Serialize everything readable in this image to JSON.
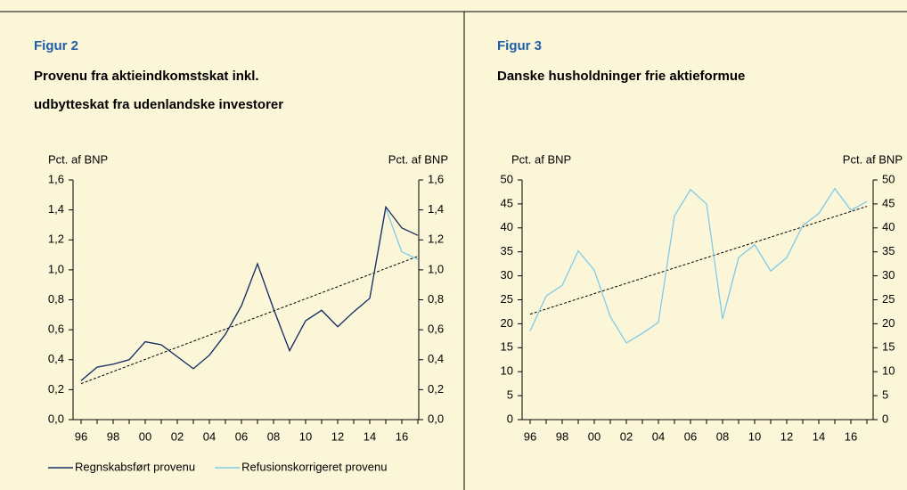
{
  "chart_data": [
    {
      "type": "line",
      "figure_label": "Figur 2",
      "title": [
        "Provenu fra aktieindkomstskat inkl.",
        "udbytteskat fra udenlandske investorer"
      ],
      "ylabel": "Pct. af BNP",
      "y2label": "Pct. af BNP",
      "categories": [
        "96",
        null,
        "98",
        null,
        "00",
        null,
        "02",
        null,
        "04",
        null,
        "06",
        null,
        "08",
        null,
        "10",
        null,
        "12",
        null,
        "14",
        null,
        "16",
        null
      ],
      "series": [
        {
          "name": "Regnskabsført provenu",
          "color": "#1b2b5e",
          "values": [
            0.26,
            0.35,
            0.37,
            0.4,
            0.52,
            0.5,
            0.42,
            0.34,
            0.43,
            0.57,
            0.76,
            1.04,
            0.74,
            0.46,
            0.66,
            0.73,
            0.62,
            0.72,
            0.81,
            1.42,
            1.28,
            1.23
          ]
        },
        {
          "name": "Refusionskorrigeret provenu",
          "color": "#7ecbe8",
          "values": [
            0.26,
            0.35,
            0.37,
            0.4,
            0.52,
            0.5,
            0.42,
            0.34,
            0.43,
            0.57,
            0.76,
            1.04,
            0.74,
            0.46,
            0.66,
            0.73,
            0.62,
            0.72,
            0.81,
            1.41,
            1.12,
            1.07
          ]
        }
      ],
      "trendline": {
        "start": 0.24,
        "end": 1.09,
        "color": "#000000",
        "dashed": true
      },
      "ylim": [
        0,
        1.6
      ],
      "yticks": [
        {
          "value": 0,
          "label": "0,0"
        },
        {
          "value": 0.2,
          "label": "0,2"
        },
        {
          "value": 0.4,
          "label": "0,4"
        },
        {
          "value": 0.6,
          "label": "0,6"
        },
        {
          "value": 0.8,
          "label": "0,8"
        },
        {
          "value": 1.0,
          "label": "1,0"
        },
        {
          "value": 1.2,
          "label": "1,2"
        },
        {
          "value": 1.4,
          "label": "1,4"
        },
        {
          "value": 1.6,
          "label": "1,6"
        }
      ],
      "y2lim": [
        0,
        1.6
      ],
      "y2ticks": [
        {
          "value": 0,
          "label": "0,0"
        },
        {
          "value": 0.2,
          "label": "0,2"
        },
        {
          "value": 0.4,
          "label": "0,4"
        },
        {
          "value": 0.6,
          "label": "0,6"
        },
        {
          "value": 0.8,
          "label": "0,8"
        },
        {
          "value": 1.0,
          "label": "1,0"
        },
        {
          "value": 1.2,
          "label": "1,2"
        },
        {
          "value": 1.4,
          "label": "1,4"
        },
        {
          "value": 1.6,
          "label": "1,6"
        }
      ],
      "legend": "bottom",
      "grid": false
    },
    {
      "type": "line",
      "figure_label": "Figur 3",
      "title": [
        "Danske husholdninger frie aktieformue"
      ],
      "ylabel": "Pct. af BNP",
      "y2label": "Pct. af BNP",
      "categories": [
        "96",
        null,
        "98",
        null,
        "00",
        null,
        "02",
        null,
        "04",
        null,
        "06",
        null,
        "08",
        null,
        "10",
        null,
        "12",
        null,
        "14",
        null,
        "16",
        null
      ],
      "series": [
        {
          "color": "#7ecbe8",
          "values": [
            18.5,
            25.8,
            28,
            35.2,
            31.2,
            21.5,
            16,
            18,
            20.3,
            42.5,
            48,
            45,
            21,
            33.8,
            36.5,
            31,
            33.8,
            40.5,
            43,
            48.2,
            43.7,
            45.5
          ]
        }
      ],
      "trendline": {
        "start": 22,
        "end": 44.5,
        "color": "#000000",
        "dashed": true
      },
      "ylim": [
        0,
        50
      ],
      "yticks": [
        0,
        5,
        10,
        15,
        20,
        25,
        30,
        35,
        40,
        45,
        50
      ],
      "y2lim": [
        0,
        50
      ],
      "y2ticks": [
        0,
        5,
        10,
        15,
        20,
        25,
        30,
        35,
        40,
        45,
        50
      ],
      "grid": false
    }
  ]
}
